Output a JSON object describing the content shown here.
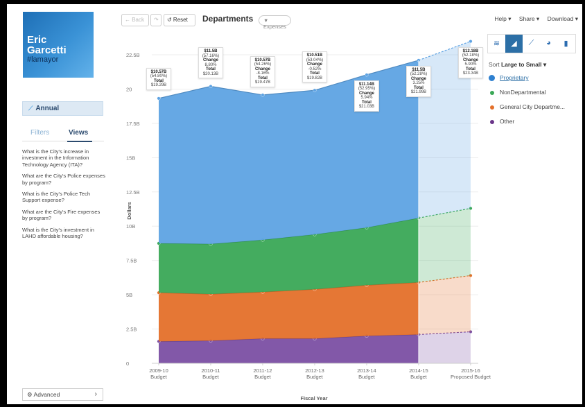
{
  "sidebar": {
    "logo_line1": "Eric",
    "logo_line2": "Garcetti",
    "logo_line3": "#lamayor",
    "annual_label": "Annual",
    "tab_filters": "Filters",
    "tab_views": "Views",
    "questions": [
      "What is the City's increase in investment in the Information Technology Agency (ITA)?",
      "What are the City's Police expenses by program?",
      "What is the City's Police Tech Support expense?",
      "What are the City's Fire expenses by program?",
      "What is the City's investment in LAHD affordable housing?"
    ],
    "advanced_label": "Advanced"
  },
  "toolbar": {
    "back_label": "← Back",
    "forward_label": "↷",
    "reset_label": "↺ Reset",
    "title": "Departments",
    "filter_chip": "Expenses"
  },
  "top_menu": {
    "help": "Help ▾",
    "share": "Share ▾",
    "download": "Download ▾"
  },
  "chart_types": [
    "line-chart-icon",
    "area-chart-icon",
    "trend-chart-icon",
    "pie-chart-icon",
    "bar-chart-icon"
  ],
  "sort": {
    "prefix": "Sort ",
    "value": "Large to Small ▾"
  },
  "legend": [
    {
      "label": "Proprietary",
      "color": "#2f80d0",
      "selected": true
    },
    {
      "label": "NonDepartmental",
      "color": "#3aa856",
      "selected": false
    },
    {
      "label": "General City Departme...",
      "color": "#e4702a",
      "selected": false
    },
    {
      "label": "Other",
      "color": "#6a3589",
      "selected": false
    }
  ],
  "chart_data": {
    "type": "area",
    "stacked": true,
    "xlabel": "Fiscal Year",
    "ylabel": "Dollars",
    "ylim": [
      0,
      22.5
    ],
    "yticks": [
      "0",
      "2.5B",
      "5B",
      "7.5B",
      "10B",
      "12.5B",
      "15B",
      "17.5B",
      "20",
      "22.5B"
    ],
    "categories": [
      [
        "2009-10",
        "Budget"
      ],
      [
        "2010-11",
        "Budget"
      ],
      [
        "2011-12",
        "Budget"
      ],
      [
        "2012-13",
        "Budget"
      ],
      [
        "2013-14",
        "Budget"
      ],
      [
        "2014-15",
        "Budget"
      ],
      [
        "2015-16",
        "Proposed Budget"
      ]
    ],
    "projected_from_index": 5,
    "series": [
      {
        "name": "Other",
        "color": "#7b4fa3",
        "values": [
          1.6,
          1.65,
          1.8,
          1.8,
          2.0,
          2.1,
          2.3
        ]
      },
      {
        "name": "General City Departme...",
        "color": "#e4702a",
        "values": [
          3.55,
          3.4,
          3.4,
          3.6,
          3.7,
          3.8,
          4.1
        ]
      },
      {
        "name": "NonDepartmental",
        "color": "#3aa856",
        "values": [
          3.6,
          3.65,
          3.8,
          4.0,
          4.2,
          4.7,
          4.9
        ]
      },
      {
        "name": "Proprietary",
        "color": "#5ea3e3",
        "values": [
          10.57,
          11.5,
          10.57,
          10.51,
          11.14,
          11.5,
          12.18
        ]
      }
    ],
    "totals": [
      19.29,
      20.13,
      19.47,
      19.82,
      21.03,
      21.99,
      23.34
    ],
    "callouts": [
      {
        "idx": 0,
        "value": "$10.57B",
        "pct": "(54.80%)",
        "change": null,
        "total": "$19.29B"
      },
      {
        "idx": 1,
        "value": "$11.5B",
        "pct": "(57.16%)",
        "change": "8.80%",
        "total": "$20.13B"
      },
      {
        "idx": 2,
        "value": "$10.57B",
        "pct": "(54.26%)",
        "change": "-8.16%",
        "total": "$19.47B"
      },
      {
        "idx": 3,
        "value": "$10.51B",
        "pct": "(53.04%)",
        "change": "-0.52%",
        "total": "$19.82B"
      },
      {
        "idx": 4,
        "value": "$11.14B",
        "pct": "(52.95%)",
        "change": "5.94%",
        "total": "$21.03B"
      },
      {
        "idx": 5,
        "value": "$11.5B",
        "pct": "(52.28%)",
        "change": "3.25%",
        "total": "$21.99B"
      },
      {
        "idx": 6,
        "value": "$12.18B",
        "pct": "(52.18%)",
        "change": "5.90%",
        "total": "$23.34B"
      }
    ],
    "callout_labels": {
      "change": "Change",
      "total": "Total"
    }
  }
}
